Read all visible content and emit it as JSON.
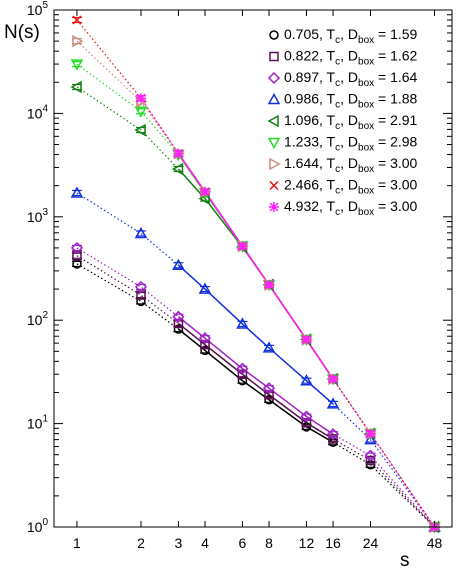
{
  "chart_data": {
    "type": "line",
    "title": "",
    "xlabel": "s",
    "ylabel": "N(s)",
    "xscale": "log",
    "yscale": "log",
    "xlim": [
      0.78,
      58
    ],
    "ylim": [
      1,
      100000
    ],
    "x_ticks": [
      1,
      2,
      3,
      4,
      6,
      8,
      12,
      16,
      24,
      48
    ],
    "y_ticks": [
      {
        "value": 1,
        "base": "10",
        "exp": "0"
      },
      {
        "value": 10,
        "base": "10",
        "exp": "1"
      },
      {
        "value": 100,
        "base": "10",
        "exp": "2"
      },
      {
        "value": 1000,
        "base": "10",
        "exp": "3"
      },
      {
        "value": 10000,
        "base": "10",
        "exp": "4"
      },
      {
        "value": 100000,
        "base": "10",
        "exp": "5"
      }
    ],
    "grid": false,
    "legend_position": "top-right",
    "x": [
      1,
      2,
      3,
      4,
      6,
      8,
      12,
      16,
      24,
      48
    ],
    "series": [
      {
        "temp": "0.705",
        "dbox": "1.59",
        "color": "#000000",
        "marker": "circle",
        "values": [
          350,
          152,
          82,
          51,
          26,
          17,
          9.3,
          6.6,
          4.0,
          1
        ]
      },
      {
        "temp": "0.822",
        "dbox": "1.62",
        "color": "#5a1050",
        "marker": "square",
        "values": [
          420,
          175,
          93,
          58,
          30,
          19,
          10.2,
          7.1,
          4.4,
          1
        ]
      },
      {
        "temp": "0.897",
        "dbox": "1.64",
        "color": "#a020c8",
        "marker": "diamond",
        "values": [
          500,
          210,
          108,
          67,
          34,
          22,
          11.7,
          7.9,
          4.9,
          1
        ]
      },
      {
        "temp": "0.986",
        "dbox": "1.88",
        "color": "#1030e0",
        "marker": "triangle-up",
        "values": [
          1700,
          690,
          340,
          200,
          92,
          54,
          26,
          15.5,
          7.0,
          1
        ]
      },
      {
        "temp": "1.096",
        "dbox": "2.91",
        "color": "#108010",
        "marker": "triangle-left",
        "values": [
          18000,
          6900,
          2900,
          1500,
          510,
          220,
          65,
          27,
          8.0,
          1
        ]
      },
      {
        "temp": "1.233",
        "dbox": "2.98",
        "color": "#20e020",
        "marker": "triangle-down",
        "values": [
          30000,
          10500,
          4000,
          1700,
          520,
          220,
          65,
          27,
          8.0,
          1
        ]
      },
      {
        "temp": "1.644",
        "dbox": "3.00",
        "color": "#c89080",
        "marker": "triangle-right",
        "values": [
          50000,
          13000,
          4100,
          1750,
          520,
          220,
          65,
          27,
          8.0,
          1
        ]
      },
      {
        "temp": "2.466",
        "dbox": "3.00",
        "color": "#e01010",
        "marker": "x",
        "values": [
          80000,
          14000,
          4100,
          1750,
          520,
          220,
          65,
          27,
          8.0,
          1
        ]
      },
      {
        "temp": "4.932",
        "dbox": "3.00",
        "color": "#ff20ff",
        "marker": "star",
        "values": [
          null,
          14000,
          4100,
          1750,
          520,
          220,
          65,
          27,
          8.0,
          1
        ]
      }
    ],
    "legend_text": {
      "t_sub": "c",
      "d_label": "D",
      "d_sub": "box",
      "separator": ", T",
      "equals": " = "
    }
  }
}
